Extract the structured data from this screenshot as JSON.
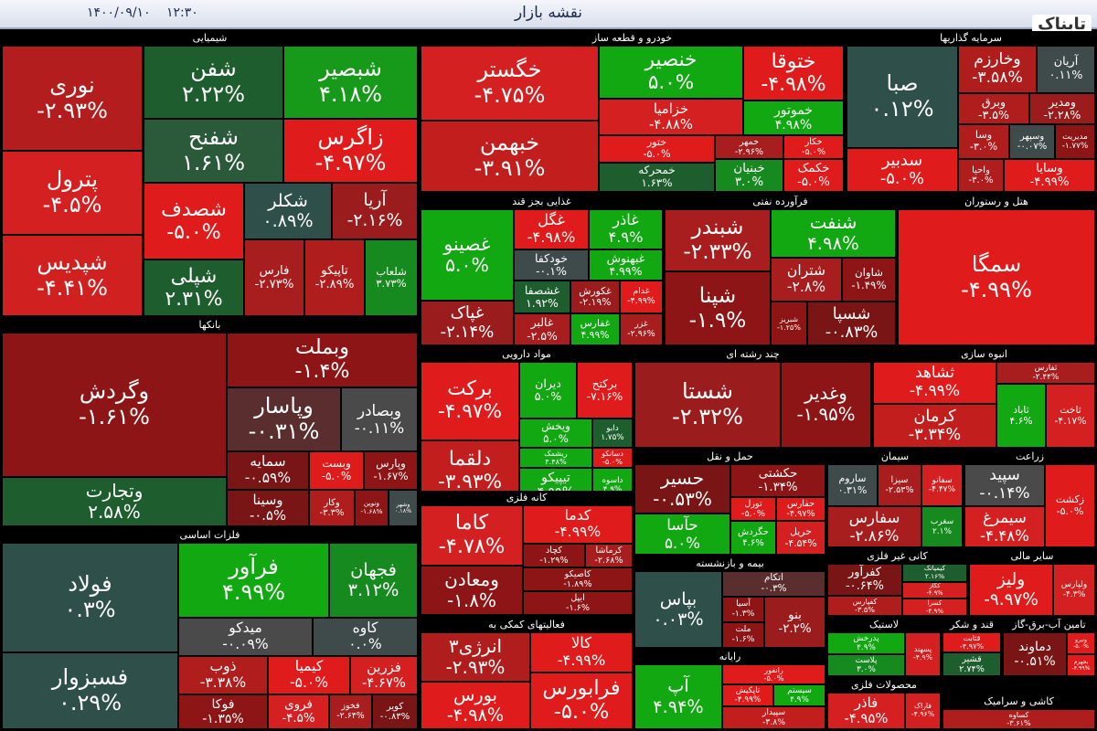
{
  "header": {
    "title": "نقشه بازار",
    "date": "۱۴۰۰/۰۹/۱۰",
    "time": "۱۲:۳۰",
    "logo": "تابناک"
  },
  "sectors": [
    {
      "name": "شیمیایی",
      "tiles": [
        {
          "name": "نوری",
          "change": "-۲.۹۳%",
          "color": "#b31d1d"
        },
        {
          "name": "پترول",
          "change": "-۴.۵%",
          "color": "#d42020"
        },
        {
          "name": "شپدیس",
          "change": "-۴.۴۱%",
          "color": "#d02020"
        },
        {
          "name": "شفن",
          "change": "۲.۲۲%",
          "color": "#1e5e2e"
        },
        {
          "name": "شبصیر",
          "change": "۴.۱۸%",
          "color": "#179a1a"
        },
        {
          "name": "شفنح",
          "change": "۱.۶۱%",
          "color": "#2a5a3a"
        },
        {
          "name": "زاگرس",
          "change": "-۴.۹۷%",
          "color": "#e01b1b"
        },
        {
          "name": "شصدف",
          "change": "-۵.۰%",
          "color": "#e01b1b"
        },
        {
          "name": "شپلی",
          "change": "۲.۳۱%",
          "color": "#1e5e2e"
        },
        {
          "name": "شکلر",
          "change": "۰.۸۹%",
          "color": "#2f4f4a"
        },
        {
          "name": "آریا",
          "change": "-۲.۱۶%",
          "color": "#9b1c1c"
        },
        {
          "name": "فارس",
          "change": "-۲.۷۳%",
          "color": "#a81d1d"
        },
        {
          "name": "تاپیکو",
          "change": "-۲.۸۹%",
          "color": "#b01d1d"
        },
        {
          "name": "شلعاب",
          "change": "۳.۷۳%",
          "color": "#168a1e"
        }
      ]
    },
    {
      "name": "بانکها",
      "tiles": [
        {
          "name": "وگردش",
          "change": "-۱.۶۱%",
          "color": "#8e1515"
        },
        {
          "name": "وتجارت",
          "change": "۲.۵۸%",
          "color": "#1e5e2e"
        },
        {
          "name": "وبملت",
          "change": "-۱.۴%",
          "color": "#8e1515"
        },
        {
          "name": "وپاسار",
          "change": "-۰.۳۱%",
          "color": "#5a2e2e"
        },
        {
          "name": "وبصادر",
          "change": "-۰.۱۱%",
          "color": "#4a4a4a"
        },
        {
          "name": "سمایه",
          "change": "-۰.۵۹%",
          "color": "#7a1515"
        },
        {
          "name": "وبست",
          "change": "-۵.۰%",
          "color": "#e01b1b"
        },
        {
          "name": "وپارس",
          "change": "-۱.۶۷%",
          "color": "#8e1515"
        },
        {
          "name": "وسینا",
          "change": "-۰.۵%",
          "color": "#7a1515"
        },
        {
          "name": "وکار",
          "change": "-۳.۳%",
          "color": "#b01d1d"
        },
        {
          "name": "ونوین",
          "change": "-۱.۶۸%",
          "color": "#8e1515"
        },
        {
          "name": "وشهر",
          "change": "۰.۱۸%",
          "color": "#3f4a4a"
        }
      ]
    },
    {
      "name": "فلزات اساسی",
      "tiles": [
        {
          "name": "فولاد",
          "change": "۰.۳%",
          "color": "#2f4f4a"
        },
        {
          "name": "فسبزوار",
          "change": "۰.۲۹%",
          "color": "#2f4f4a"
        },
        {
          "name": "فرآور",
          "change": "۴.۹۹%",
          "color": "#11a811"
        },
        {
          "name": "فجهان",
          "change": "۳.۱۲%",
          "color": "#168a1e"
        },
        {
          "name": "میدکو",
          "change": "-۰.۰۹%",
          "color": "#4a4a4a"
        },
        {
          "name": "کاوه",
          "change": "۰.۰%",
          "color": "#3f4a4a"
        },
        {
          "name": "ذوب",
          "change": "-۳.۳۸%",
          "color": "#b01d1d"
        },
        {
          "name": "کیمیا",
          "change": "-۵.۰%",
          "color": "#e01b1b"
        },
        {
          "name": "فزرین",
          "change": "-۴.۶۷%",
          "color": "#d42020"
        },
        {
          "name": "فوکا",
          "change": "-۱.۳۵%",
          "color": "#8e1515"
        },
        {
          "name": "فروی",
          "change": "-۴.۵%",
          "color": "#d42020"
        },
        {
          "name": "فخوز",
          "change": "-۲.۶۴%",
          "color": "#a81d1d"
        },
        {
          "name": "کویر",
          "change": "-۰.۸۳%",
          "color": "#7a1515"
        }
      ]
    },
    {
      "name": "خودرو  و قطعه ساز",
      "tiles": [
        {
          "name": "خگستر",
          "change": "-۴.۷۵%",
          "color": "#d42020"
        },
        {
          "name": "خبهمن",
          "change": "-۳.۹۱%",
          "color": "#c21e1e"
        },
        {
          "name": "خنصیر",
          "change": "۵.۰%",
          "color": "#11a811"
        },
        {
          "name": "خزامیا",
          "change": "-۴.۸۸%",
          "color": "#d42020"
        },
        {
          "name": "ختوقا",
          "change": "-۴.۹۸%",
          "color": "#e01b1b"
        },
        {
          "name": "خموتور",
          "change": "۴.۹۸%",
          "color": "#11a811"
        },
        {
          "name": "ختور",
          "change": "-۵.۰%",
          "color": "#e01b1b"
        },
        {
          "name": "خمحرکه",
          "change": "۱.۶۳%",
          "color": "#1e5e2e"
        },
        {
          "name": "خمهر",
          "change": "-۲.۹۶%",
          "color": "#a81d1d"
        },
        {
          "name": "خکار",
          "change": "-۵.۰%",
          "color": "#e01b1b"
        },
        {
          "name": "خبنیان",
          "change": "۳.۰%",
          "color": "#168a1e"
        },
        {
          "name": "خکمک",
          "change": "-۵.۰%",
          "color": "#e01b1b"
        }
      ]
    },
    {
      "name": "سرمایه گذاریها",
      "tiles": [
        {
          "name": "صبا",
          "change": "۰.۱۲%",
          "color": "#2f4f4a"
        },
        {
          "name": "سدبیر",
          "change": "-۵.۰%",
          "color": "#e01b1b"
        },
        {
          "name": "وخارزم",
          "change": "-۳.۵۸%",
          "color": "#b01d1d"
        },
        {
          "name": "آریان",
          "change": "۰.۱۱%",
          "color": "#3f4a4a"
        },
        {
          "name": "وبرق",
          "change": "-۳.۵%",
          "color": "#b01d1d"
        },
        {
          "name": "ومدیر",
          "change": "-۲.۲۸%",
          "color": "#9b1c1c"
        },
        {
          "name": "وسا",
          "change": "-۳.۰%",
          "color": "#b01d1d"
        },
        {
          "name": "وسپهر",
          "change": "-۰.۰۷%",
          "color": "#3f4a4a"
        },
        {
          "name": "مدیریت",
          "change": "-۱.۷۷%",
          "color": "#8e1515"
        },
        {
          "name": "واحیا",
          "change": "-۳.۰%",
          "color": "#b01d1d"
        },
        {
          "name": "وسایا",
          "change": "-۴.۹۹%",
          "color": "#e01b1b"
        }
      ]
    },
    {
      "name": "غذایی بجز قند",
      "tiles": [
        {
          "name": "غصینو",
          "change": "۵.۰%",
          "color": "#11a811"
        },
        {
          "name": "غپاک",
          "change": "-۲.۱۴%",
          "color": "#9b1c1c"
        },
        {
          "name": "غگل",
          "change": "-۴.۹۸%",
          "color": "#e01b1b"
        },
        {
          "name": "غاذر",
          "change": "۴.۹%",
          "color": "#11a811"
        },
        {
          "name": "خودکفا",
          "change": "-۰.۱%",
          "color": "#3f4a4a"
        },
        {
          "name": "غبهنوش",
          "change": "۴.۹۹%",
          "color": "#11a811"
        },
        {
          "name": "غشصفا",
          "change": "۱.۹۲%",
          "color": "#1e5e2e"
        },
        {
          "name": "غکورش",
          "change": "-۲.۱۹%",
          "color": "#9b1c1c"
        },
        {
          "name": "غدام",
          "change": "-۴.۹۹%",
          "color": "#e01b1b"
        },
        {
          "name": "غالبر",
          "change": "-۲.۵%",
          "color": "#a81d1d"
        },
        {
          "name": "غفارس",
          "change": "۴.۹۹%",
          "color": "#11a811"
        },
        {
          "name": "غزر",
          "change": "-۲.۹۶%",
          "color": "#a81d1d"
        }
      ]
    },
    {
      "name": "فرآورده نفتی",
      "tiles": [
        {
          "name": "شبندر",
          "change": "-۲.۳۳%",
          "color": "#a81d1d"
        },
        {
          "name": "شپنا",
          "change": "-۱.۹%",
          "color": "#8e1515"
        },
        {
          "name": "شنفت",
          "change": "۴.۹۸%",
          "color": "#11a811"
        },
        {
          "name": "شتران",
          "change": "-۲.۸%",
          "color": "#a81d1d"
        },
        {
          "name": "شاوان",
          "change": "-۱.۴۹%",
          "color": "#8e1515"
        },
        {
          "name": "شبریز",
          "change": "-۱.۲۵%",
          "color": "#8e1515"
        },
        {
          "name": "شسپا",
          "change": "-۰.۸۳%",
          "color": "#7a1515"
        }
      ]
    },
    {
      "name": "هتل و رستوران",
      "tiles": [
        {
          "name": "سمگا",
          "change": "-۴.۹۹%",
          "color": "#e01b1b"
        }
      ]
    },
    {
      "name": "مواد دارویی",
      "tiles": [
        {
          "name": "برکت",
          "change": "-۴.۹۷%",
          "color": "#e01b1b"
        },
        {
          "name": "دلقما",
          "change": "-۳.۹۳%",
          "color": "#c21e1e"
        },
        {
          "name": "دیران",
          "change": "۵.۰%",
          "color": "#11a811"
        },
        {
          "name": "برکتح",
          "change": "-۷.۱۶%",
          "color": "#e01b1b"
        },
        {
          "name": "ویخش",
          "change": "۵.۰%",
          "color": "#11a811"
        },
        {
          "name": "دابو",
          "change": "۱.۷۵%",
          "color": "#1e5e2e"
        },
        {
          "name": "ریشمک",
          "change": "۴.۴۸%",
          "color": "#11a811"
        },
        {
          "name": "دسانکو",
          "change": "-۵.۰%",
          "color": "#e01b1b"
        },
        {
          "name": "تیپیکو",
          "change": "۴.۹۹%",
          "color": "#11a811"
        },
        {
          "name": "داسوه",
          "change": "۴.۹%",
          "color": "#11a811"
        }
      ]
    },
    {
      "name": "چند رشته ای",
      "tiles": [
        {
          "name": "شستا",
          "change": "-۲.۳۲%",
          "color": "#9b1c1c"
        },
        {
          "name": "وغدیر",
          "change": "-۱.۹۵%",
          "color": "#8e1515"
        }
      ]
    },
    {
      "name": "انبوه سازی",
      "tiles": [
        {
          "name": "ثشاهد",
          "change": "-۴.۹۹%",
          "color": "#e01b1b"
        },
        {
          "name": "کرمان",
          "change": "-۳.۳۴%",
          "color": "#c21e1e"
        },
        {
          "name": "ثفارس",
          "change": "-۲.۴۴%",
          "color": "#a81d1d"
        },
        {
          "name": "ثاباد",
          "change": "۴.۶%",
          "color": "#11a811"
        },
        {
          "name": "ثاخت",
          "change": "-۴.۱۷%",
          "color": "#d42020"
        }
      ]
    },
    {
      "name": "حمل و نقل",
      "tiles": [
        {
          "name": "حسیر",
          "change": "-۰.۵۳%",
          "color": "#7a1515"
        },
        {
          "name": "حآسا",
          "change": "۵.۰%",
          "color": "#11a811"
        },
        {
          "name": "حکشتی",
          "change": "-۱.۳۴%",
          "color": "#8e1515"
        },
        {
          "name": "تورل",
          "change": "-۵.۰%",
          "color": "#e01b1b"
        },
        {
          "name": "حفارس",
          "change": "-۴.۹۷%",
          "color": "#e01b1b"
        },
        {
          "name": "حگردش",
          "change": "۴.۶%",
          "color": "#11a811"
        },
        {
          "name": "حریل",
          "change": "-۴.۵۴%",
          "color": "#d42020"
        }
      ]
    },
    {
      "name": "سیمان",
      "tiles": [
        {
          "name": "ساروم",
          "change": "۰.۳۱%",
          "color": "#3f4a4a"
        },
        {
          "name": "سیزا",
          "change": "-۲.۵۳%",
          "color": "#a81d1d"
        },
        {
          "name": "سفانو",
          "change": "-۴.۴۷%",
          "color": "#d42020"
        },
        {
          "name": "سفارس",
          "change": "-۲.۸۶%",
          "color": "#a81d1d"
        },
        {
          "name": "سغرب",
          "change": "۲.۱%",
          "color": "#168a1e"
        }
      ]
    },
    {
      "name": "زراعت",
      "tiles": [
        {
          "name": "سپید",
          "change": "-۰.۱۴%",
          "color": "#4a4a4a"
        },
        {
          "name": "سیمرغ",
          "change": "-۴.۴۸%",
          "color": "#d42020"
        },
        {
          "name": "زکشت",
          "change": "-۵.۰%",
          "color": "#e01b1b"
        }
      ]
    },
    {
      "name": "کانه فلزی",
      "tiles": [
        {
          "name": "کاما",
          "change": "-۴.۷۸%",
          "color": "#d42020"
        },
        {
          "name": "ومعادن",
          "change": "-۱.۸%",
          "color": "#8e1515"
        },
        {
          "name": "کدما",
          "change": "-۴.۹۹%",
          "color": "#e01b1b"
        },
        {
          "name": "کچاد",
          "change": "-۱.۲۹%",
          "color": "#8e1515"
        },
        {
          "name": "کرماشا",
          "change": "-۲.۶۸%",
          "color": "#a81d1d"
        },
        {
          "name": "کاصیکو",
          "change": "-۱.۸۹%",
          "color": "#8e1515"
        },
        {
          "name": "ایپل",
          "change": "-۱.۶%",
          "color": "#8e1515"
        }
      ]
    },
    {
      "name": "بیمه و بازنشسته",
      "tiles": [
        {
          "name": "بپاس",
          "change": "۰.۰۳%",
          "color": "#2f4f4a"
        },
        {
          "name": "اتکام",
          "change": "-۰.۳%",
          "color": "#5a2e2e"
        },
        {
          "name": "آسیا",
          "change": "-۱.۳%",
          "color": "#8e1515"
        },
        {
          "name": "بنو",
          "change": "-۲.۲%",
          "color": "#9b1c1c"
        },
        {
          "name": "ملت",
          "change": "-۱.۶%",
          "color": "#8e1515"
        }
      ]
    },
    {
      "name": "کانی غیر فلزی",
      "tiles": [
        {
          "name": "کفرآور",
          "change": "-۰.۶۴%",
          "color": "#7a1515"
        },
        {
          "name": "کفپارس",
          "change": "-۳.۵%",
          "color": "#b01d1d"
        },
        {
          "name": "کیمیاتک",
          "change": "۲.۱۶%",
          "color": "#1e5e2e"
        },
        {
          "name": "کگاز",
          "change": "-۴.۹%",
          "color": "#d42020"
        },
        {
          "name": "کسرا",
          "change": "-۴.۹%",
          "color": "#d42020"
        }
      ]
    },
    {
      "name": "سایر مالی",
      "tiles": [
        {
          "name": "ولیز",
          "change": "-۹.۹۷%",
          "color": "#e01b1b"
        },
        {
          "name": "ولپارس",
          "change": "-۴.۳%",
          "color": "#d42020"
        }
      ]
    },
    {
      "name": "فعالیتهای کمکی به",
      "tiles": [
        {
          "name": "انرژی۳",
          "change": "-۲.۹۳%",
          "color": "#b01d1d"
        },
        {
          "name": "بورس",
          "change": "-۴.۹۸%",
          "color": "#e01b1b"
        },
        {
          "name": "کالا",
          "change": "-۴.۹۹%",
          "color": "#e01b1b"
        },
        {
          "name": "فرابورس",
          "change": "-۵.۰%",
          "color": "#e01b1b"
        }
      ]
    },
    {
      "name": "رایانه",
      "tiles": [
        {
          "name": "آپ",
          "change": "۴.۹۴%",
          "color": "#11a811"
        },
        {
          "name": "رانفور",
          "change": "-۵.۰%",
          "color": "#e01b1b"
        },
        {
          "name": "تاپکیش",
          "change": "-۴.۹۹%",
          "color": "#e01b1b"
        },
        {
          "name": "سیستم",
          "change": "۴.۹%",
          "color": "#11a811"
        },
        {
          "name": "سپیدار",
          "change": "-۳.۸%",
          "color": "#c21e1e"
        }
      ]
    },
    {
      "name": "لاستیک",
      "tiles": [
        {
          "name": "پدرخش",
          "change": "۴.۹%",
          "color": "#11a811"
        },
        {
          "name": "پلاست",
          "change": "۳.۰%",
          "color": "#168a1e"
        },
        {
          "name": "پسهند",
          "change": "-۴.۹%",
          "color": "#d42020"
        }
      ]
    },
    {
      "name": "قند و شکر",
      "tiles": [
        {
          "name": "قثابت",
          "change": "-۴.۹۷%",
          "color": "#e01b1b"
        },
        {
          "name": "قشیر",
          "change": "۲.۷۴%",
          "color": "#1e5e2e"
        }
      ]
    },
    {
      "name": "تامین آب-برق-گاز",
      "tiles": [
        {
          "name": "دماوند",
          "change": "-۰.۵۱%",
          "color": "#7a1515"
        },
        {
          "name": "ونیرو",
          "change": "-۵.۰%",
          "color": "#e01b1b"
        },
        {
          "name": "بجهرم",
          "change": "-۴.۹۹%",
          "color": "#e01b1b"
        }
      ]
    },
    {
      "name": "محصولات فلزی",
      "tiles": [
        {
          "name": "فاذر",
          "change": "-۴.۹۵%",
          "color": "#d42020"
        },
        {
          "name": "فاراک",
          "change": "-۴.۹۶%",
          "color": "#d42020"
        }
      ]
    },
    {
      "name": "کاشی و سرامیک",
      "tiles": [
        {
          "name": "کساوه",
          "change": "-۳.۶۱%",
          "color": "#b01d1d"
        }
      ]
    }
  ]
}
